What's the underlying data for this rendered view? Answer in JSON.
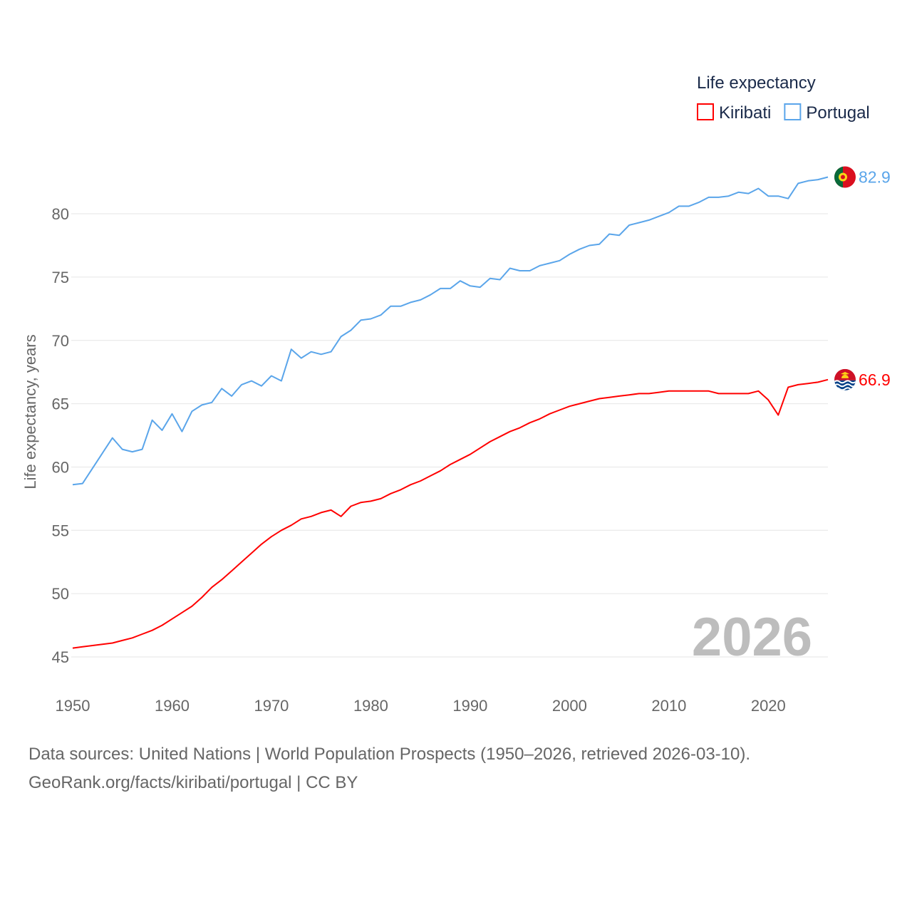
{
  "chart_data": {
    "type": "line",
    "title": "",
    "xlabel": "",
    "ylabel": "Life expectancy, years",
    "xlim": [
      1950,
      2026
    ],
    "ylim": [
      45,
      83
    ],
    "yticks": [
      45,
      50,
      55,
      60,
      65,
      70,
      75,
      80
    ],
    "xticks": [
      1950,
      1960,
      1970,
      1980,
      1990,
      2000,
      2010,
      2020
    ],
    "grid": true,
    "legend": {
      "title": "Life expectancy",
      "placement": "top-right"
    },
    "year_label": "2026",
    "x": [
      1950,
      1951,
      1952,
      1953,
      1954,
      1955,
      1956,
      1957,
      1958,
      1959,
      1960,
      1961,
      1962,
      1963,
      1964,
      1965,
      1966,
      1967,
      1968,
      1969,
      1970,
      1971,
      1972,
      1973,
      1974,
      1975,
      1976,
      1977,
      1978,
      1979,
      1980,
      1981,
      1982,
      1983,
      1984,
      1985,
      1986,
      1987,
      1988,
      1989,
      1990,
      1991,
      1992,
      1993,
      1994,
      1995,
      1996,
      1997,
      1998,
      1999,
      2000,
      2001,
      2002,
      2003,
      2004,
      2005,
      2006,
      2007,
      2008,
      2009,
      2010,
      2011,
      2012,
      2013,
      2014,
      2015,
      2016,
      2017,
      2018,
      2019,
      2020,
      2021,
      2022,
      2023,
      2024,
      2025,
      2026
    ],
    "series": [
      {
        "name": "Kiribati",
        "color": "#ff0000",
        "end_label": "66.9",
        "values": [
          45.7,
          45.8,
          45.9,
          46.0,
          46.1,
          46.3,
          46.5,
          46.8,
          47.1,
          47.5,
          48.0,
          48.5,
          49.0,
          49.7,
          50.5,
          51.1,
          51.8,
          52.5,
          53.2,
          53.9,
          54.5,
          55.0,
          55.4,
          55.9,
          56.1,
          56.4,
          56.6,
          56.1,
          56.9,
          57.2,
          57.3,
          57.5,
          57.9,
          58.2,
          58.6,
          58.9,
          59.3,
          59.7,
          60.2,
          60.6,
          61.0,
          61.5,
          62.0,
          62.4,
          62.8,
          63.1,
          63.5,
          63.8,
          64.2,
          64.5,
          64.8,
          65.0,
          65.2,
          65.4,
          65.5,
          65.6,
          65.7,
          65.8,
          65.8,
          65.9,
          66.0,
          66.0,
          66.0,
          66.0,
          66.0,
          65.8,
          65.8,
          65.8,
          65.8,
          66.0,
          65.3,
          64.1,
          66.3,
          66.5,
          66.6,
          66.7,
          66.9
        ]
      },
      {
        "name": "Portugal",
        "color": "#5aa5ea",
        "end_label": "82.9",
        "values": [
          58.6,
          58.7,
          59.9,
          61.1,
          62.3,
          61.4,
          61.2,
          61.4,
          63.7,
          62.9,
          64.2,
          62.8,
          64.4,
          64.9,
          65.1,
          66.2,
          65.6,
          66.5,
          66.8,
          66.4,
          67.2,
          66.8,
          69.3,
          68.6,
          69.1,
          68.9,
          69.1,
          70.3,
          70.8,
          71.6,
          71.7,
          72.0,
          72.7,
          72.7,
          73.0,
          73.2,
          73.6,
          74.1,
          74.1,
          74.7,
          74.3,
          74.2,
          74.9,
          74.8,
          75.7,
          75.5,
          75.5,
          75.9,
          76.1,
          76.3,
          76.8,
          77.2,
          77.5,
          77.6,
          78.4,
          78.3,
          79.1,
          79.3,
          79.5,
          79.8,
          80.1,
          80.6,
          80.6,
          80.9,
          81.3,
          81.3,
          81.4,
          81.7,
          81.6,
          82.0,
          81.4,
          81.4,
          81.2,
          82.4,
          82.6,
          82.7,
          82.9
        ]
      }
    ]
  },
  "footer": {
    "line1": "Data sources: United Nations | World Population Prospects (1950–2026, retrieved 2026-03-10).",
    "line2": "GeoRank.org/facts/kiribati/portugal | CC BY"
  }
}
